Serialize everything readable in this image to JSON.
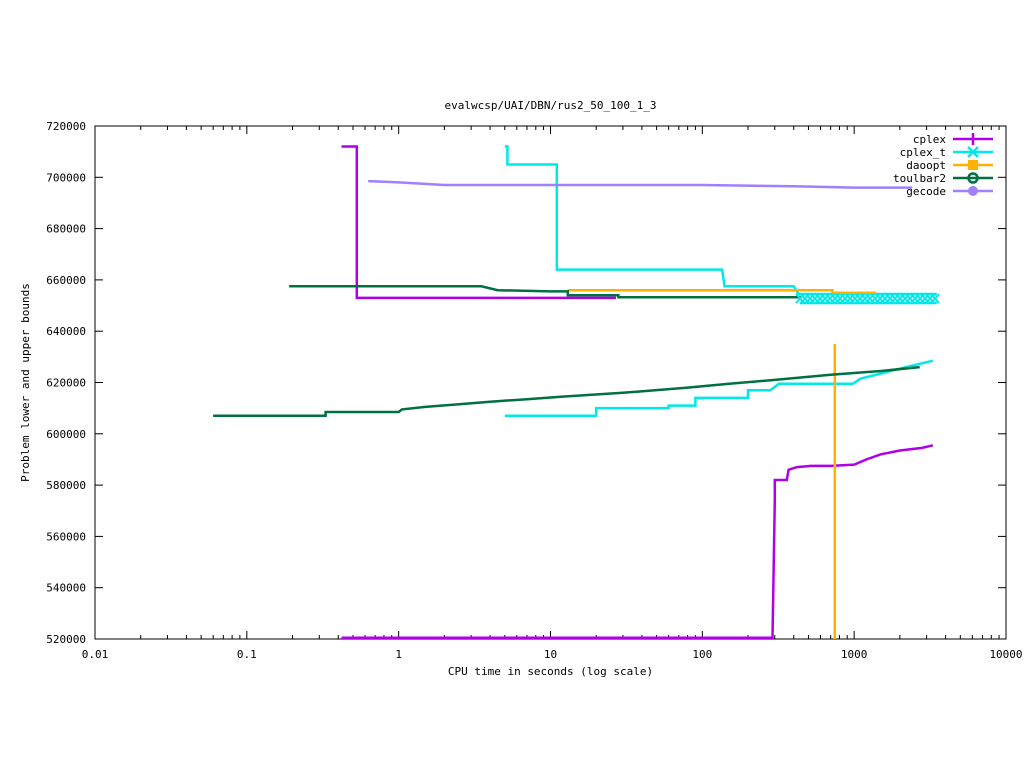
{
  "chart_data": {
    "type": "line",
    "title": "evalwcsp/UAI/DBN/rus2_50_100_1_3",
    "xlabel": "CPU time in seconds (log scale)",
    "ylabel": "Problem lower and upper bounds",
    "xscale": "log",
    "xlim": [
      0.01,
      10000
    ],
    "ylim": [
      520000,
      720000
    ],
    "xticks": [
      0.01,
      0.1,
      1,
      10,
      100,
      1000,
      10000
    ],
    "xtick_labels": [
      "0.01",
      "0.1",
      "1",
      "10",
      "100",
      "1000",
      "10000"
    ],
    "yticks": [
      520000,
      540000,
      560000,
      580000,
      600000,
      620000,
      640000,
      660000,
      680000,
      700000,
      720000
    ],
    "ytick_labels": [
      "520000",
      "540000",
      "560000",
      "580000",
      "600000",
      "620000",
      "640000",
      "660000",
      "680000",
      "700000",
      "720000"
    ],
    "legend_position": "top-right",
    "grid": false,
    "series": [
      {
        "name": "cplex",
        "color": "#b000e8",
        "marker": "plus",
        "upper": [
          [
            0.42,
            712000
          ],
          [
            0.53,
            712000
          ],
          [
            0.53,
            653000
          ],
          [
            27,
            653000
          ]
        ],
        "lower": [
          [
            0.42,
            520500
          ],
          [
            290,
            520500
          ],
          [
            300,
            574000
          ],
          [
            300,
            582000
          ],
          [
            360,
            582000
          ],
          [
            370,
            586000
          ],
          [
            420,
            587000
          ],
          [
            520,
            587500
          ],
          [
            700,
            587500
          ],
          [
            1000,
            588000
          ],
          [
            1200,
            590000
          ],
          [
            1500,
            592000
          ],
          [
            2000,
            593500
          ],
          [
            2800,
            594500
          ],
          [
            3300,
            595500
          ]
        ]
      },
      {
        "name": "cplex_t",
        "color": "#00e8e8",
        "marker": "x",
        "upper": [
          [
            5.0,
            712000
          ],
          [
            5.2,
            712000
          ],
          [
            5.2,
            705000
          ],
          [
            11,
            705000
          ],
          [
            11,
            664000
          ],
          [
            135,
            664000
          ],
          [
            140,
            657500
          ],
          [
            400,
            657500
          ],
          [
            430,
            654500
          ],
          [
            3500,
            654500
          ]
        ],
        "upper2": [
          [
            440,
            651000
          ],
          [
            3500,
            651000
          ]
        ],
        "lower": [
          [
            5.0,
            607000
          ],
          [
            20,
            607000
          ],
          [
            20,
            610000
          ],
          [
            60,
            610000
          ],
          [
            60,
            611000
          ],
          [
            90,
            611000
          ],
          [
            90,
            614000
          ],
          [
            200,
            614000
          ],
          [
            200,
            617000
          ],
          [
            280,
            617000
          ],
          [
            320,
            619500
          ],
          [
            980,
            619500
          ],
          [
            1100,
            621500
          ],
          [
            1500,
            623500
          ],
          [
            2200,
            626000
          ],
          [
            3300,
            628500
          ]
        ]
      },
      {
        "name": "daoopt",
        "color": "#ffb000",
        "marker": "square",
        "upper": [
          [
            13,
            656000
          ],
          [
            720,
            656000
          ],
          [
            720,
            655000
          ],
          [
            1400,
            655000
          ]
        ],
        "lower": [
          [
            745,
            520000
          ],
          [
            745,
            635000
          ]
        ]
      },
      {
        "name": "toulbar2",
        "color": "#007040",
        "marker": "circle",
        "upper": [
          [
            0.19,
            657500
          ],
          [
            3.5,
            657500
          ],
          [
            4.5,
            656000
          ],
          [
            10,
            655500
          ],
          [
            13,
            655500
          ],
          [
            13,
            654000
          ],
          [
            28,
            654000
          ],
          [
            28,
            653200
          ],
          [
            450,
            653200
          ]
        ],
        "lower": [
          [
            0.06,
            607000
          ],
          [
            0.33,
            607000
          ],
          [
            0.33,
            608500
          ],
          [
            1,
            608500
          ],
          [
            1.05,
            609500
          ],
          [
            1.5,
            610500
          ],
          [
            2.5,
            611500
          ],
          [
            4,
            612500
          ],
          [
            7,
            613500
          ],
          [
            12,
            614500
          ],
          [
            30,
            616000
          ],
          [
            80,
            618000
          ],
          [
            150,
            619500
          ],
          [
            300,
            621000
          ],
          [
            700,
            623000
          ],
          [
            1500,
            624500
          ],
          [
            2700,
            626000
          ]
        ]
      },
      {
        "name": "gecode",
        "color": "#a080ff",
        "marker": "circle-filled",
        "upper": [
          [
            0.63,
            698500
          ],
          [
            1.0,
            698000
          ],
          [
            2.0,
            697000
          ],
          [
            10,
            697000
          ],
          [
            100,
            697000
          ],
          [
            400,
            696500
          ],
          [
            1000,
            696000
          ],
          [
            2400,
            696000
          ]
        ]
      }
    ]
  }
}
